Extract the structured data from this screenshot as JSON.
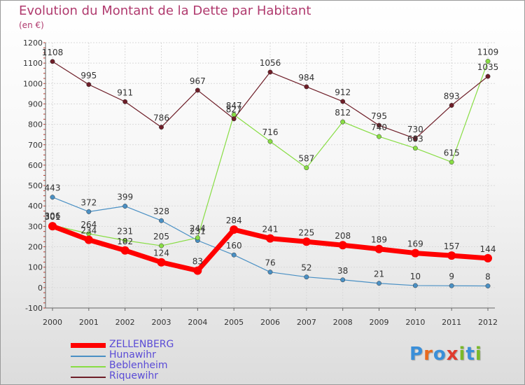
{
  "title": "Evolution du Montant de la Dette par Habitant",
  "subtitle": "(en €)",
  "logo": [
    "P",
    "r",
    "o",
    "x",
    "i",
    "t",
    "i"
  ],
  "logo_colors": [
    "#3a8fd9",
    "#e86a1e",
    "#3a8fd9",
    "#e03b2e",
    "#7ab929",
    "#3a8fd9",
    "#7ab929"
  ],
  "chart_data": {
    "type": "line",
    "title": "Evolution du Montant de la Dette par Habitant",
    "subtitle": "(en €)",
    "xlabel": "",
    "ylabel": "",
    "ylim": [
      -100,
      1200
    ],
    "yticks": [
      -100,
      0,
      100,
      200,
      300,
      400,
      500,
      600,
      700,
      800,
      900,
      1000,
      1100,
      1200
    ],
    "x": [
      2000,
      2001,
      2002,
      2003,
      2004,
      2005,
      2006,
      2007,
      2008,
      2009,
      2010,
      2011,
      2012
    ],
    "grid": true,
    "legend_position": "bottom-left",
    "series": [
      {
        "name": "ZELLENBERG",
        "color": "#ff0000",
        "values": [
          301,
          234,
          182,
          124,
          83,
          284,
          241,
          225,
          208,
          189,
          169,
          157,
          144
        ]
      },
      {
        "name": "Hunawihr",
        "color": "#4a90c4",
        "values": [
          443,
          372,
          399,
          328,
          231,
          160,
          76,
          52,
          38,
          21,
          10,
          9,
          8
        ]
      },
      {
        "name": "Beblenheim",
        "color": "#88dd44",
        "values": [
          306,
          264,
          231,
          205,
          244,
          847,
          716,
          587,
          812,
          740,
          683,
          615,
          1109
        ]
      },
      {
        "name": "Riquewihr",
        "color": "#6e1e28",
        "values": [
          1108,
          995,
          911,
          786,
          967,
          827,
          1056,
          984,
          912,
          795,
          730,
          893,
          1035
        ]
      }
    ]
  }
}
